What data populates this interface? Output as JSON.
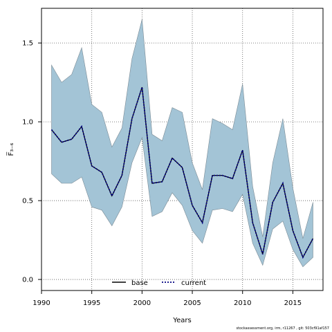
{
  "chart_data": {
    "type": "line",
    "xlabel": "Years",
    "ylabel": "F̅₃₋₆",
    "xlim": [
      1990,
      2018
    ],
    "ylim": [
      -0.07,
      1.72
    ],
    "xticks": [
      1990,
      1995,
      2000,
      2005,
      2010,
      2015
    ],
    "xtick_labels": [
      "1990",
      "1995",
      "2000",
      "2005",
      "2010",
      "2015"
    ],
    "yticks": [
      0.0,
      0.5,
      1.0,
      1.5
    ],
    "ytick_labels": [
      "0.0",
      "0.5",
      "1.0",
      "1.5"
    ],
    "grid": true,
    "legend_position": "bottom-center",
    "x": [
      1991,
      1992,
      1993,
      1994,
      1995,
      1996,
      1997,
      1998,
      1999,
      2000,
      2001,
      2002,
      2003,
      2004,
      2005,
      2006,
      2007,
      2008,
      2009,
      2010,
      2011,
      2012,
      2013,
      2014,
      2015,
      2016,
      2017
    ],
    "series": [
      {
        "name": "base",
        "style": "solid",
        "color": "#000000",
        "values": [
          0.95,
          0.87,
          0.89,
          0.97,
          0.72,
          0.68,
          0.53,
          0.66,
          1.02,
          1.22,
          0.61,
          0.62,
          0.77,
          0.71,
          0.47,
          0.36,
          0.66,
          0.66,
          0.64,
          0.82,
          0.36,
          0.16,
          0.49,
          0.61,
          0.31,
          0.14,
          0.26
        ]
      },
      {
        "name": "current",
        "style": "dotted",
        "color": "#000080",
        "values": [
          0.95,
          0.87,
          0.89,
          0.97,
          0.72,
          0.68,
          0.53,
          0.66,
          1.02,
          1.22,
          0.61,
          0.62,
          0.77,
          0.71,
          0.47,
          0.36,
          0.66,
          0.66,
          0.64,
          0.82,
          0.36,
          0.16,
          0.49,
          0.61,
          0.31,
          0.14,
          0.26
        ]
      }
    ],
    "band": {
      "color": "#a3c4d6",
      "upper": [
        1.36,
        1.25,
        1.3,
        1.47,
        1.11,
        1.06,
        0.84,
        0.96,
        1.4,
        1.65,
        0.92,
        0.88,
        1.09,
        1.06,
        0.74,
        0.57,
        1.02,
        0.99,
        0.95,
        1.24,
        0.59,
        0.27,
        0.74,
        1.02,
        0.58,
        0.26,
        0.49
      ],
      "lower": [
        0.67,
        0.61,
        0.61,
        0.65,
        0.46,
        0.44,
        0.34,
        0.46,
        0.74,
        0.9,
        0.4,
        0.43,
        0.55,
        0.47,
        0.31,
        0.23,
        0.44,
        0.45,
        0.43,
        0.54,
        0.23,
        0.09,
        0.32,
        0.37,
        0.19,
        0.08,
        0.14
      ]
    }
  },
  "footer": "stockassessment.org, irm, r11267 , git: 503cf91af157"
}
